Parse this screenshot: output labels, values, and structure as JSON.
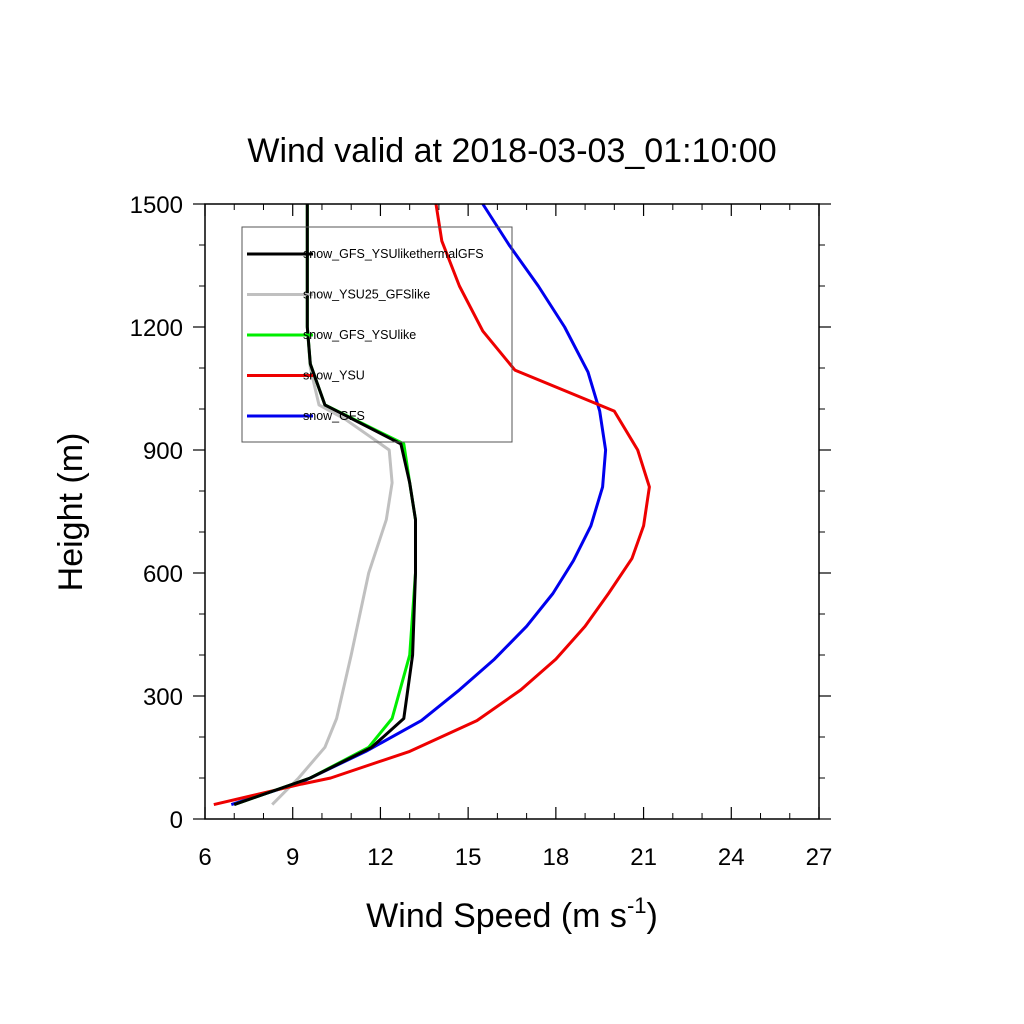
{
  "chart_data": {
    "type": "line",
    "title": "Wind valid at 2018-03-03_01:10:00",
    "xlabel": "Wind Speed (m s",
    "xlabel_sup": "-1",
    "xlabel_end": ")",
    "ylabel": "Height (m)",
    "xlim": [
      6,
      27
    ],
    "ylim": [
      0,
      1500
    ],
    "x_ticks": [
      6,
      9,
      12,
      15,
      18,
      21,
      24,
      27
    ],
    "x_tick_labels": [
      "6",
      "9",
      "12",
      "15",
      "18",
      "21",
      "24",
      "27"
    ],
    "y_ticks": [
      0,
      300,
      600,
      900,
      1200,
      1500
    ],
    "y_tick_labels": [
      "0",
      "300",
      "600",
      "900",
      "1200",
      "1500"
    ],
    "grid": false,
    "legend_position": "top-left",
    "series": [
      {
        "name": "snow_GFS_YSUlikethermalGFS",
        "color": "#000000",
        "points": [
          [
            7.0,
            35
          ],
          [
            9.6,
            100
          ],
          [
            11.7,
            175
          ],
          [
            12.8,
            245
          ],
          [
            13.1,
            400
          ],
          [
            13.2,
            600
          ],
          [
            13.2,
            730
          ],
          [
            13.0,
            820
          ],
          [
            12.7,
            915
          ],
          [
            10.1,
            1010
          ],
          [
            9.6,
            1110
          ],
          [
            9.5,
            1200
          ],
          [
            9.5,
            1350
          ],
          [
            9.5,
            1500
          ]
        ]
      },
      {
        "name": "snow_YSU25_GFSlike",
        "color": "#c0c0c0",
        "points": [
          [
            8.3,
            35
          ],
          [
            9.2,
            100
          ],
          [
            10.1,
            175
          ],
          [
            10.5,
            245
          ],
          [
            11.0,
            400
          ],
          [
            11.6,
            600
          ],
          [
            12.2,
            730
          ],
          [
            12.4,
            820
          ],
          [
            12.3,
            900
          ],
          [
            10.8,
            975
          ],
          [
            9.9,
            1010
          ],
          [
            9.6,
            1100
          ],
          [
            9.5,
            1200
          ],
          [
            9.5,
            1350
          ],
          [
            9.5,
            1500
          ]
        ]
      },
      {
        "name": "snow_GFS_YSUlike",
        "color": "#00ee00",
        "points": [
          [
            7.0,
            35
          ],
          [
            9.6,
            100
          ],
          [
            11.6,
            175
          ],
          [
            12.4,
            245
          ],
          [
            13.0,
            400
          ],
          [
            13.2,
            600
          ],
          [
            13.2,
            730
          ],
          [
            13.0,
            820
          ],
          [
            12.8,
            915
          ],
          [
            10.1,
            1010
          ],
          [
            9.6,
            1110
          ],
          [
            9.5,
            1200
          ],
          [
            9.5,
            1350
          ],
          [
            9.5,
            1500
          ]
        ]
      },
      {
        "name": "snow_YSU",
        "color": "#ee0000",
        "points": [
          [
            6.3,
            35
          ],
          [
            9.3,
            85
          ],
          [
            10.3,
            100
          ],
          [
            13.0,
            165
          ],
          [
            15.3,
            240
          ],
          [
            16.8,
            315
          ],
          [
            18.0,
            390
          ],
          [
            19.0,
            470
          ],
          [
            19.8,
            550
          ],
          [
            20.6,
            635
          ],
          [
            21.0,
            715
          ],
          [
            21.2,
            810
          ],
          [
            20.8,
            900
          ],
          [
            20.0,
            995
          ],
          [
            16.6,
            1095
          ],
          [
            15.5,
            1190
          ],
          [
            14.7,
            1300
          ],
          [
            14.1,
            1410
          ],
          [
            13.9,
            1500
          ]
        ]
      },
      {
        "name": "snow_GFS",
        "color": "#0000ee",
        "points": [
          [
            6.9,
            35
          ],
          [
            9.3,
            90
          ],
          [
            11.5,
            165
          ],
          [
            13.4,
            240
          ],
          [
            14.7,
            315
          ],
          [
            15.9,
            390
          ],
          [
            17.0,
            470
          ],
          [
            17.9,
            550
          ],
          [
            18.6,
            630
          ],
          [
            19.2,
            715
          ],
          [
            19.6,
            810
          ],
          [
            19.7,
            900
          ],
          [
            19.5,
            995
          ],
          [
            19.1,
            1090
          ],
          [
            18.3,
            1200
          ],
          [
            17.4,
            1300
          ],
          [
            16.4,
            1400
          ],
          [
            15.5,
            1500
          ]
        ]
      }
    ]
  }
}
